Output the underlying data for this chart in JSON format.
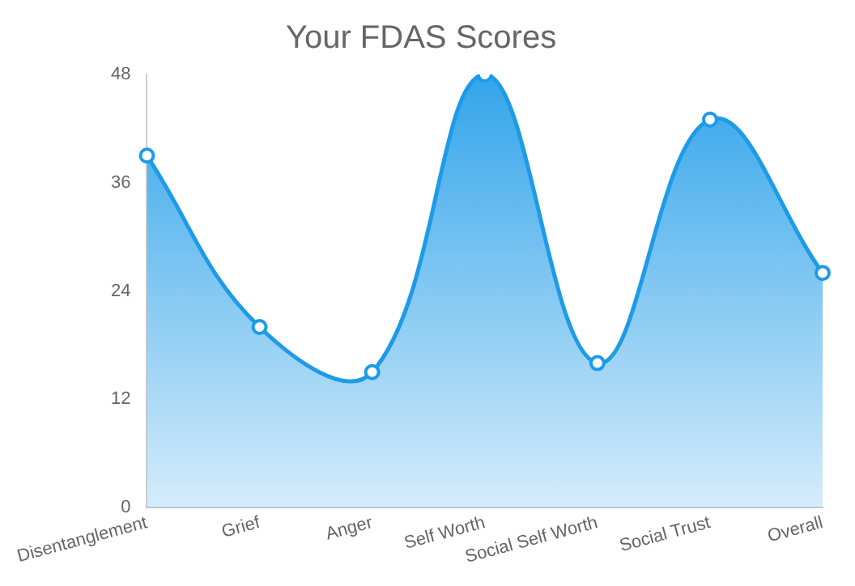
{
  "chart_data": {
    "type": "area",
    "title": "Your FDAS Scores",
    "categories": [
      "Disentanglement",
      "Grief",
      "Anger",
      "Self Worth",
      "Social Self Worth",
      "Social Trust",
      "Overall"
    ],
    "values": [
      39,
      20,
      15,
      48,
      16,
      43,
      26
    ],
    "color": "#1e9be8",
    "ylim": [
      0,
      48
    ],
    "yticks": [
      0,
      12,
      24,
      36,
      48
    ],
    "grid": false,
    "legend": false,
    "marker": "circle"
  }
}
